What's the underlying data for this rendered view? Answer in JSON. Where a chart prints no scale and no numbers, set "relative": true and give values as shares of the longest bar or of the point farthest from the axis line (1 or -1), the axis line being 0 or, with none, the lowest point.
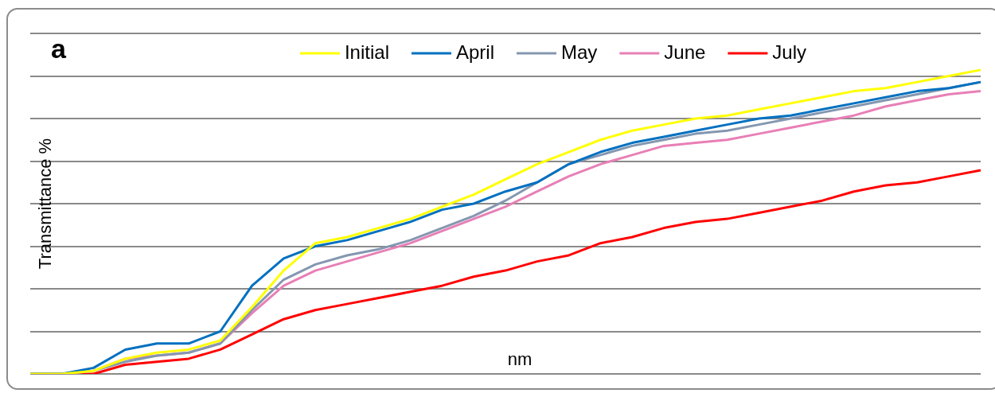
{
  "chart_data": {
    "type": "line",
    "relative": true,
    "ylabel": "Transmittance %",
    "xlabel": "nm",
    "annotations": [
      "a"
    ],
    "legend": "top",
    "grid": "y",
    "marker": "none",
    "line_style": "solid",
    "categories": [
      null,
      null,
      null,
      null,
      null,
      null,
      null,
      null,
      null,
      null,
      null,
      null,
      null,
      null,
      null,
      null,
      null,
      null,
      null,
      null,
      null,
      null,
      null,
      null,
      null,
      null,
      null,
      null,
      null,
      null,
      null
    ],
    "series": [
      {
        "name": "Initial",
        "color": "#ffff00",
        "values": [
          0,
          0,
          0.01,
          0.05,
          0.07,
          0.08,
          0.11,
          0.22,
          0.34,
          0.43,
          0.45,
          0.48,
          0.51,
          0.55,
          0.59,
          0.64,
          0.69,
          0.73,
          0.77,
          0.8,
          0.82,
          0.84,
          0.85,
          0.87,
          0.89,
          0.91,
          0.93,
          0.94,
          0.96,
          0.98,
          1
        ]
      },
      {
        "name": "April",
        "color": "#0070c0",
        "values": [
          0,
          0,
          0.02,
          0.08,
          0.1,
          0.1,
          0.14,
          0.29,
          0.38,
          0.42,
          0.44,
          0.47,
          0.5,
          0.54,
          0.56,
          0.6,
          0.63,
          0.69,
          0.73,
          0.76,
          0.78,
          0.8,
          0.82,
          0.84,
          0.85,
          0.87,
          0.89,
          0.91,
          0.93,
          0.94,
          0.96
        ]
      },
      {
        "name": "May",
        "color": "#8497b0",
        "values": [
          0,
          0,
          0.01,
          0.04,
          0.06,
          0.07,
          0.1,
          0.21,
          0.31,
          0.36,
          0.39,
          0.41,
          0.44,
          0.48,
          0.52,
          0.57,
          0.63,
          0.69,
          0.72,
          0.75,
          0.77,
          0.79,
          0.8,
          0.82,
          0.84,
          0.86,
          0.88,
          0.9,
          0.92,
          0.94,
          0.96
        ]
      },
      {
        "name": "June",
        "color": "#e87fb6",
        "values": [
          0,
          0,
          0.01,
          0.05,
          0.06,
          0.07,
          0.1,
          0.2,
          0.29,
          0.34,
          0.37,
          0.4,
          0.43,
          0.47,
          0.51,
          0.55,
          0.6,
          0.65,
          0.69,
          0.72,
          0.75,
          0.76,
          0.77,
          0.79,
          0.81,
          0.83,
          0.85,
          0.88,
          0.9,
          0.92,
          0.93
        ]
      },
      {
        "name": "July",
        "color": "#ff0000",
        "values": [
          0,
          0,
          0,
          0.03,
          0.04,
          0.05,
          0.08,
          0.13,
          0.18,
          0.21,
          0.23,
          0.25,
          0.27,
          0.29,
          0.32,
          0.34,
          0.37,
          0.39,
          0.43,
          0.45,
          0.48,
          0.5,
          0.51,
          0.53,
          0.55,
          0.57,
          0.6,
          0.62,
          0.63,
          0.65,
          0.67
        ]
      }
    ]
  }
}
